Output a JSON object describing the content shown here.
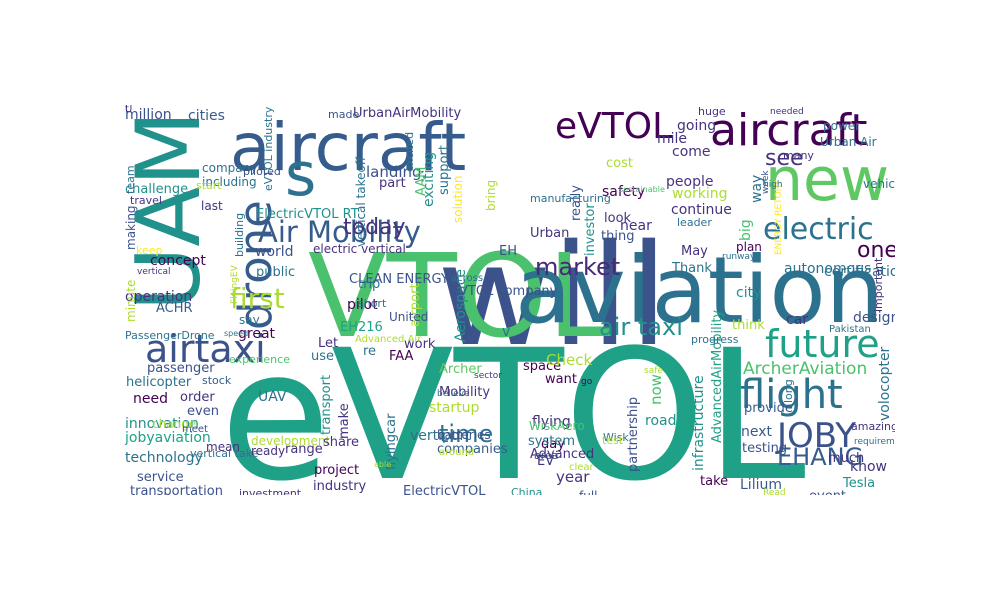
{
  "palette": {
    "dark_purple": "#46327e",
    "indigo": "#3b528b",
    "blue": "#365c8d",
    "teal_blue": "#2c728e",
    "teal": "#21918c",
    "sea_green": "#1fa187",
    "green": "#4ac16d",
    "light_green": "#5ec962",
    "lime": "#addc30",
    "yellow": "#fde725",
    "deep_purple": "#440154",
    "violet": "#482878"
  },
  "words": [
    {
      "text": "eVTOL",
      "color": "#1fa187"
    },
    {
      "text": "will",
      "color": "#3b528b"
    },
    {
      "text": "VTOL",
      "color": "#4ac16d"
    },
    {
      "text": "aviation",
      "color": "#2c728e"
    },
    {
      "text": "UAM",
      "color": "#21918c"
    },
    {
      "text": "aircraft",
      "color": "#365c8d"
    },
    {
      "text": "aircraft",
      "color": "#440154"
    },
    {
      "text": "new",
      "color": "#5ec962"
    },
    {
      "text": "eVTOL",
      "color": "#440154"
    },
    {
      "text": "s",
      "color": "#2c728e"
    },
    {
      "text": "drone",
      "color": "#365c8d"
    },
    {
      "text": "airtaxi",
      "color": "#3b528b"
    },
    {
      "text": "Air Mobility",
      "color": "#365c8d"
    },
    {
      "text": "future",
      "color": "#1fa187"
    },
    {
      "text": "flight",
      "color": "#2c728e"
    },
    {
      "text": "JOBY",
      "color": "#3b528b"
    },
    {
      "text": "electric",
      "color": "#2c728e"
    },
    {
      "text": "air taxi",
      "color": "#21918c"
    },
    {
      "text": "market",
      "color": "#482878"
    },
    {
      "text": "first",
      "color": "#addc30"
    },
    {
      "text": "today",
      "color": "#46327e"
    },
    {
      "text": "time",
      "color": "#2c728e"
    },
    {
      "text": "EHANG",
      "color": "#365c8d"
    },
    {
      "text": "ArcherAviation",
      "color": "#4ac16d"
    },
    {
      "text": "see",
      "color": "#46327e"
    },
    {
      "text": "one",
      "color": "#440154"
    },
    {
      "text": "million",
      "color": "#3b528b"
    },
    {
      "text": "cities",
      "color": "#365c8d"
    },
    {
      "text": "UrbanAirMobility",
      "color": "#46327e"
    },
    {
      "text": "made",
      "color": "#3b528b"
    },
    {
      "text": "eVTOL industry",
      "color": "#2c728e"
    },
    {
      "text": "landing",
      "color": "#3b528b"
    },
    {
      "text": "part",
      "color": "#46327e"
    },
    {
      "text": "AAM",
      "color": "#4ac16d"
    },
    {
      "text": "exciting",
      "color": "#21918c"
    },
    {
      "text": "support",
      "color": "#2c728e"
    },
    {
      "text": "ElectricVTOL RT",
      "color": "#21918c"
    },
    {
      "text": "electric vertical",
      "color": "#46327e"
    },
    {
      "text": "world",
      "color": "#3b528b"
    },
    {
      "text": "public",
      "color": "#2c728e"
    },
    {
      "text": "concept",
      "color": "#440154"
    },
    {
      "text": "operation",
      "color": "#46327e"
    },
    {
      "text": "ACHR",
      "color": "#365c8d"
    },
    {
      "text": "say",
      "color": "#2c728e"
    },
    {
      "text": "great",
      "color": "#440154"
    },
    {
      "text": "pilot",
      "color": "#440154"
    },
    {
      "text": "EH216",
      "color": "#1fa187"
    },
    {
      "text": "work",
      "color": "#46327e"
    },
    {
      "text": "Let",
      "color": "#46327e"
    },
    {
      "text": "use",
      "color": "#2c728e"
    },
    {
      "text": "FAA",
      "color": "#440154"
    },
    {
      "text": "passenger",
      "color": "#3b528b"
    },
    {
      "text": "helicopter",
      "color": "#2c728e"
    },
    {
      "text": "stock",
      "color": "#365c8d"
    },
    {
      "text": "order",
      "color": "#46327e"
    },
    {
      "text": "even",
      "color": "#3b528b"
    },
    {
      "text": "need",
      "color": "#440154"
    },
    {
      "text": "UAV",
      "color": "#2c728e"
    },
    {
      "text": "innovation",
      "color": "#21918c"
    },
    {
      "text": "jobyaviation",
      "color": "#1fa187"
    },
    {
      "text": "technology",
      "color": "#2c728e"
    },
    {
      "text": "development",
      "color": "#addc30"
    },
    {
      "text": "range",
      "color": "#46327e"
    },
    {
      "text": "service",
      "color": "#3b528b"
    },
    {
      "text": "transportation",
      "color": "#3b528b"
    },
    {
      "text": "investment",
      "color": "#46327e"
    },
    {
      "text": "industry",
      "color": "#46327e"
    },
    {
      "text": "project",
      "color": "#440154"
    },
    {
      "text": "share",
      "color": "#46327e"
    },
    {
      "text": "make",
      "color": "#46327e"
    },
    {
      "text": "transport",
      "color": "#21918c"
    },
    {
      "text": "flyingcar",
      "color": "#2c728e"
    },
    {
      "text": "vertiport",
      "color": "#2c728e"
    },
    {
      "text": "companies",
      "color": "#365c8d"
    },
    {
      "text": "startup",
      "color": "#addc30"
    },
    {
      "text": "Mobility",
      "color": "#46327e"
    },
    {
      "text": "Archer",
      "color": "#5ec962"
    },
    {
      "text": "Aerospace",
      "color": "#21918c"
    },
    {
      "text": "airport",
      "color": "#addc30"
    },
    {
      "text": "ElectricVTOL",
      "color": "#3b528b"
    },
    {
      "text": "China",
      "color": "#21918c"
    },
    {
      "text": "year",
      "color": "#46327e"
    },
    {
      "text": "day",
      "color": "#440154"
    },
    {
      "text": "want",
      "color": "#440154"
    },
    {
      "text": "flying",
      "color": "#46327e"
    },
    {
      "text": "WiskAero",
      "color": "#4ac16d"
    },
    {
      "text": "system",
      "color": "#2c728e"
    },
    {
      "text": "Advanced",
      "color": "#46327e"
    },
    {
      "text": "area",
      "color": "#3b528b"
    },
    {
      "text": "EV",
      "color": "#46327e"
    },
    {
      "text": "space",
      "color": "#440154"
    },
    {
      "text": "Check",
      "color": "#addc30"
    },
    {
      "text": "Wisk",
      "color": "#2c728e"
    },
    {
      "text": "partnership",
      "color": "#3b528b"
    },
    {
      "text": "road",
      "color": "#21918c"
    },
    {
      "text": "now",
      "color": "#4ac16d"
    },
    {
      "text": "infrastructure",
      "color": "#21918c"
    },
    {
      "text": "AdvancedAirMobility",
      "color": "#1fa187"
    },
    {
      "text": "take",
      "color": "#440154"
    },
    {
      "text": "next",
      "color": "#365c8d"
    },
    {
      "text": "testing",
      "color": "#3b528b"
    },
    {
      "text": "Lilium",
      "color": "#365c8d"
    },
    {
      "text": "much",
      "color": "#46327e"
    },
    {
      "text": "Tesla",
      "color": "#21918c"
    },
    {
      "text": "know",
      "color": "#46327e"
    },
    {
      "text": "provide",
      "color": "#365c8d"
    },
    {
      "text": "design",
      "color": "#3b528b"
    },
    {
      "text": "volocopter",
      "color": "#2c728e"
    },
    {
      "text": "car",
      "color": "#46327e"
    },
    {
      "text": "think",
      "color": "#addc30"
    },
    {
      "text": "city",
      "color": "#21918c"
    },
    {
      "text": "plan",
      "color": "#440154"
    },
    {
      "text": "May",
      "color": "#46327e"
    },
    {
      "text": "Thank",
      "color": "#2c728e"
    },
    {
      "text": "autonomous",
      "color": "#2c728e"
    },
    {
      "text": "certification",
      "color": "#2c728e"
    },
    {
      "text": "working",
      "color": "#addc30"
    },
    {
      "text": "continue",
      "color": "#46327e"
    },
    {
      "text": "look",
      "color": "#46327e"
    },
    {
      "text": "thing",
      "color": "#3b528b"
    },
    {
      "text": "investor",
      "color": "#21918c"
    },
    {
      "text": "Urban",
      "color": "#46327e"
    },
    {
      "text": "safety",
      "color": "#440154"
    },
    {
      "text": "cost",
      "color": "#addc30"
    },
    {
      "text": "near",
      "color": "#46327e"
    },
    {
      "text": "really",
      "color": "#3b528b"
    },
    {
      "text": "going",
      "color": "#46327e"
    },
    {
      "text": "mile",
      "color": "#46327e"
    },
    {
      "text": "come",
      "color": "#46327e"
    },
    {
      "text": "people",
      "color": "#46327e"
    },
    {
      "text": "big",
      "color": "#4ac16d"
    },
    {
      "text": "way",
      "color": "#2c728e"
    },
    {
      "text": "huge",
      "color": "#46327e"
    },
    {
      "text": "power",
      "color": "#2c728e"
    },
    {
      "text": "Urban Air",
      "color": "#2c728e"
    },
    {
      "text": "vehicle",
      "color": "#2c728e"
    },
    {
      "text": "important",
      "color": "#46327e"
    },
    {
      "text": "many",
      "color": "#46327e"
    },
    {
      "text": "challenge",
      "color": "#21918c"
    },
    {
      "text": "making",
      "color": "#3b528b"
    },
    {
      "text": "team",
      "color": "#2c728e"
    },
    {
      "text": "company",
      "color": "#2c728e"
    },
    {
      "text": "including",
      "color": "#2c728e"
    },
    {
      "text": "travel",
      "color": "#46327e"
    },
    {
      "text": "last",
      "color": "#46327e"
    },
    {
      "text": "building",
      "color": "#2c728e"
    },
    {
      "text": "piloted",
      "color": "#3b528b"
    },
    {
      "text": "vertical takeoff",
      "color": "#2c728e"
    },
    {
      "text": "start",
      "color": "#addc30"
    },
    {
      "text": "FlyingEV",
      "color": "#addc30"
    },
    {
      "text": "keep",
      "color": "#fde725"
    },
    {
      "text": "vertical",
      "color": "#46327e"
    },
    {
      "text": "minute",
      "color": "#addc30"
    },
    {
      "text": "PassengerDrone",
      "color": "#2c728e"
    },
    {
      "text": "experience",
      "color": "#4ac16d"
    },
    {
      "text": "speed",
      "color": "#2c728e"
    },
    {
      "text": "Advanced Air",
      "color": "#addc30"
    },
    {
      "text": "CLEAN ENERGY",
      "color": "#3b528b"
    },
    {
      "text": "United",
      "color": "#3b528b"
    },
    {
      "text": "short",
      "color": "#2c728e"
    },
    {
      "text": "trip",
      "color": "#2c728e"
    },
    {
      "text": "change",
      "color": "#addc30"
    },
    {
      "text": "meet",
      "color": "#3b528b"
    },
    {
      "text": "mean",
      "color": "#46327e"
    },
    {
      "text": "vertical take",
      "color": "#2c728e"
    },
    {
      "text": "ready",
      "color": "#46327e"
    },
    {
      "text": "able",
      "color": "#addc30"
    },
    {
      "text": "around",
      "color": "#addc30"
    },
    {
      "text": "batteries",
      "color": "#3b528b"
    },
    {
      "text": "believe",
      "color": "#2c728e"
    },
    {
      "text": "sector",
      "color": "#46327e"
    },
    {
      "text": "eVTOL company",
      "color": "#3b528b"
    },
    {
      "text": "across",
      "color": "#2c728e"
    },
    {
      "text": "EH",
      "color": "#3b528b"
    },
    {
      "text": "bring",
      "color": "#addc30"
    },
    {
      "text": "solution",
      "color": "#fde725"
    },
    {
      "text": "excited",
      "color": "#2c728e"
    },
    {
      "text": "manufacturing",
      "color": "#2c728e"
    },
    {
      "text": "clear",
      "color": "#addc30"
    },
    {
      "text": "go",
      "color": "#440154"
    },
    {
      "text": "test",
      "color": "#addc30"
    },
    {
      "text": "full",
      "color": "#3b528b"
    },
    {
      "text": "safe",
      "color": "#addc30"
    },
    {
      "text": "sustainable",
      "color": "#4ac16d"
    },
    {
      "text": "leader",
      "color": "#2c728e"
    },
    {
      "text": "runway",
      "color": "#2c728e"
    },
    {
      "text": "progress",
      "color": "#2c728e"
    },
    {
      "text": "Pakistan",
      "color": "#2c728e"
    },
    {
      "text": "long",
      "color": "#2c728e"
    },
    {
      "text": "amazing",
      "color": "#46327e"
    },
    {
      "text": "requirement",
      "color": "#2c728e"
    },
    {
      "text": "event",
      "color": "#3b528b"
    },
    {
      "text": "Read",
      "color": "#addc30"
    },
    {
      "text": "needed",
      "color": "#46327e"
    },
    {
      "text": "week",
      "color": "#3b528b"
    },
    {
      "text": "ENERGY RETORT",
      "color": "#fde725"
    },
    {
      "text": "high",
      "color": "#2c728e"
    },
    {
      "text": "re",
      "color": "#2c728e"
    },
    {
      "text": "v",
      "color": "#2c728e"
    },
    {
      "text": "U",
      "color": "#46327e"
    },
    {
      "text": "t",
      "color": "#46327e"
    }
  ]
}
